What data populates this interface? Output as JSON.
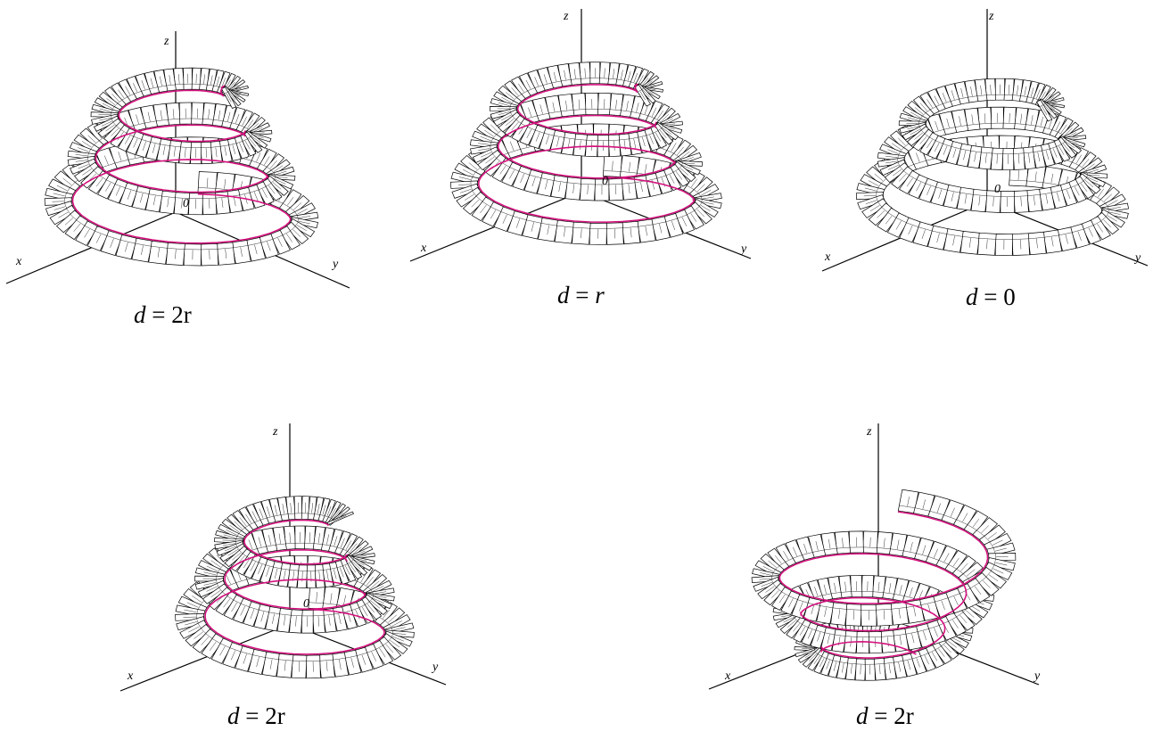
{
  "colors": {
    "tube_stroke": "#000000",
    "tube_fill": "#ffffff",
    "curve": "#d4127e",
    "axis": "#000000"
  },
  "figures": [
    {
      "id": "fig1",
      "caption_var": "d",
      "caption_eq": "=",
      "caption_val": "2r",
      "axis_x": "x",
      "axis_y": "y",
      "axis_z": "z",
      "origin": "0",
      "curve_shown": true
    },
    {
      "id": "fig2",
      "caption_var": "d",
      "caption_eq": "=",
      "caption_val": "r",
      "axis_x": "x",
      "axis_y": "y",
      "axis_z": "z",
      "origin": "0",
      "curve_shown": true
    },
    {
      "id": "fig3",
      "caption_var": "d",
      "caption_eq": "=",
      "caption_val": "0",
      "axis_x": "x",
      "axis_y": "y",
      "axis_z": "z",
      "origin": "0",
      "curve_shown": false
    },
    {
      "id": "fig4",
      "caption_var": "d",
      "caption_eq": "=",
      "caption_val": "2r",
      "axis_x": "x",
      "axis_y": "y",
      "axis_z": "z",
      "origin": "0",
      "curve_shown": true
    },
    {
      "id": "fig5",
      "caption_var": "d",
      "caption_eq": "=",
      "caption_val": "2r",
      "axis_x": "x",
      "axis_y": "y",
      "axis_z": "z",
      "origin": "",
      "curve_shown": true
    }
  ]
}
